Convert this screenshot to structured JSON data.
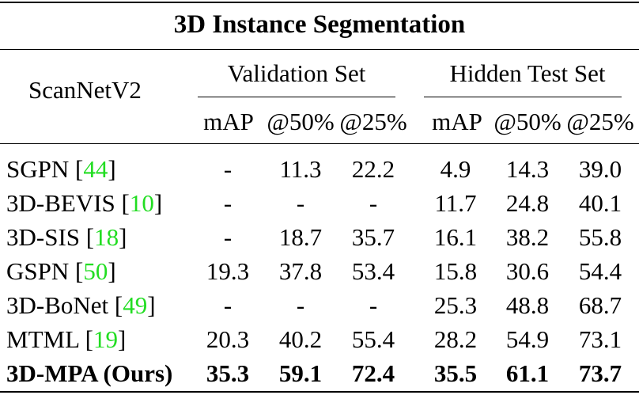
{
  "table": {
    "title": "3D Instance Segmentation",
    "dataset_label": "ScanNetV2",
    "groups": [
      "Validation Set",
      "Hidden Test Set"
    ],
    "metrics": [
      "mAP",
      "@50%",
      "@25%",
      "mAP",
      "@50%",
      "@25%"
    ],
    "rows": [
      {
        "method": "SGPN",
        "cite": "44",
        "values": [
          "-",
          "11.3",
          "22.2",
          "4.9",
          "14.3",
          "39.0"
        ],
        "bold": false
      },
      {
        "method": "3D-BEVIS",
        "cite": "10",
        "values": [
          "-",
          "-",
          "-",
          "11.7",
          "24.8",
          "40.1"
        ],
        "bold": false
      },
      {
        "method": "3D-SIS",
        "cite": "18",
        "values": [
          "-",
          "18.7",
          "35.7",
          "16.1",
          "38.2",
          "55.8"
        ],
        "bold": false
      },
      {
        "method": "GSPN",
        "cite": "50",
        "values": [
          "19.3",
          "37.8",
          "53.4",
          "15.8",
          "30.6",
          "54.4"
        ],
        "bold": false
      },
      {
        "method": "3D-BoNet",
        "cite": "49",
        "values": [
          "-",
          "-",
          "-",
          "25.3",
          "48.8",
          "68.7"
        ],
        "bold": false
      },
      {
        "method": "MTML",
        "cite": "19",
        "values": [
          "20.3",
          "40.2",
          "55.4",
          "28.2",
          "54.9",
          "73.1"
        ],
        "bold": false
      },
      {
        "method": "3D-MPA (Ours)",
        "cite": "",
        "values": [
          "35.3",
          "59.1",
          "72.4",
          "35.5",
          "61.1",
          "73.7"
        ],
        "bold": true
      }
    ]
  }
}
